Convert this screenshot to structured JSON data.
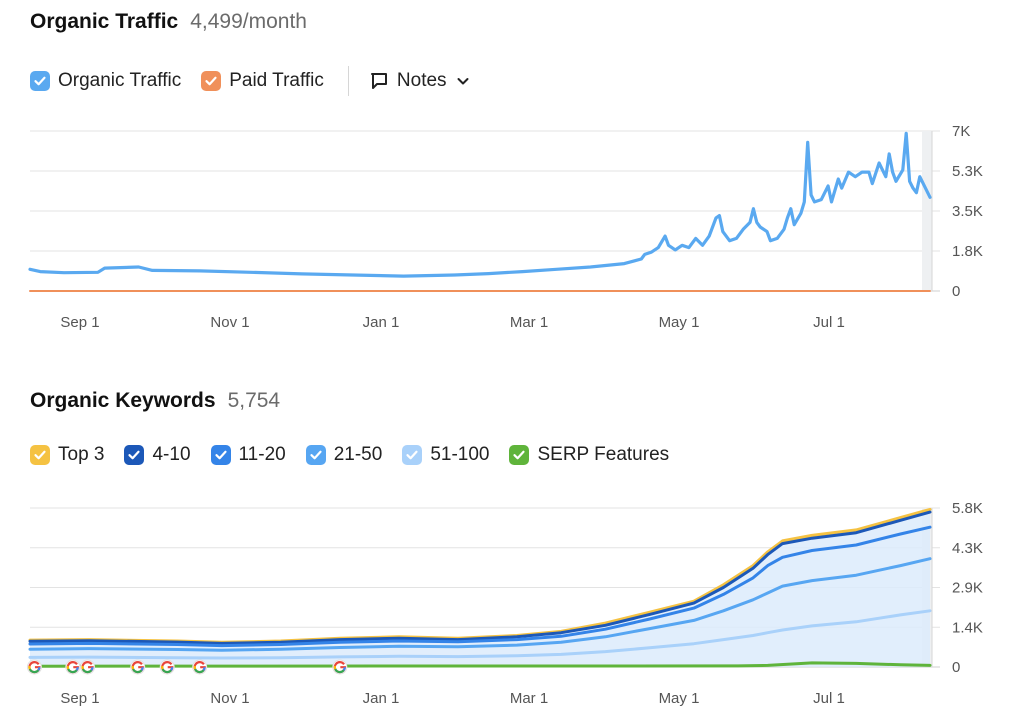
{
  "traffic": {
    "title": "Organic Traffic",
    "value": "4,499/month",
    "legend": [
      {
        "label": "Organic Traffic",
        "color": "#5aa9f0",
        "checked": true
      },
      {
        "label": "Paid Traffic",
        "color": "#f0905a",
        "checked": true
      }
    ],
    "notes_label": "Notes"
  },
  "keywords": {
    "title": "Organic Keywords",
    "value": "5,754",
    "legend": [
      {
        "label": "Top 3",
        "color": "#f5c242",
        "checked": true
      },
      {
        "label": "4-10",
        "color": "#1c58b8",
        "checked": true
      },
      {
        "label": "11-20",
        "color": "#3484e8",
        "checked": true
      },
      {
        "label": "21-50",
        "color": "#57a6f2",
        "checked": true
      },
      {
        "label": "51-100",
        "color": "#a9d1fa",
        "checked": true
      },
      {
        "label": "SERP Features",
        "color": "#5fb43b",
        "checked": true
      }
    ]
  },
  "chart_data": [
    {
      "type": "line",
      "x_start": "Aug 16",
      "x_ticks": [
        "Sep 1",
        "Nov 1",
        "Jan 1",
        "Mar 1",
        "May 1",
        "Jul 1"
      ],
      "y_ticks": [
        "0",
        "1.8K",
        "3.5K",
        "5.3K",
        "7K"
      ],
      "ylim": [
        0,
        7000
      ],
      "grid": true,
      "series": [
        {
          "name": "Organic Traffic",
          "color": "#5aa9f0",
          "values": [
            [
              0,
              950
            ],
            [
              6,
              850
            ],
            [
              20,
              800
            ],
            [
              40,
              820
            ],
            [
              44,
              1000
            ],
            [
              64,
              1050
            ],
            [
              72,
              900
            ],
            [
              100,
              880
            ],
            [
              130,
              820
            ],
            [
              160,
              750
            ],
            [
              190,
              700
            ],
            [
              220,
              650
            ],
            [
              250,
              700
            ],
            [
              270,
              760
            ],
            [
              290,
              850
            ],
            [
              310,
              950
            ],
            [
              330,
              1050
            ],
            [
              350,
              1200
            ],
            [
              360,
              1400
            ],
            [
              362,
              1600
            ],
            [
              366,
              1700
            ],
            [
              370,
              1900
            ],
            [
              374,
              2400
            ],
            [
              376,
              2000
            ],
            [
              380,
              1800
            ],
            [
              384,
              2000
            ],
            [
              388,
              1900
            ],
            [
              392,
              2300
            ],
            [
              396,
              2000
            ],
            [
              400,
              2400
            ],
            [
              404,
              3200
            ],
            [
              406,
              3300
            ],
            [
              408,
              2600
            ],
            [
              412,
              2200
            ],
            [
              416,
              2300
            ],
            [
              420,
              2700
            ],
            [
              424,
              3000
            ],
            [
              426,
              3600
            ],
            [
              428,
              3000
            ],
            [
              430,
              2800
            ],
            [
              434,
              2600
            ],
            [
              436,
              2200
            ],
            [
              440,
              2300
            ],
            [
              444,
              2700
            ],
            [
              446,
              3200
            ],
            [
              448,
              3600
            ],
            [
              450,
              2900
            ],
            [
              454,
              3400
            ],
            [
              456,
              3900
            ],
            [
              458,
              6500
            ],
            [
              460,
              4200
            ],
            [
              462,
              3900
            ],
            [
              466,
              4000
            ],
            [
              470,
              4600
            ],
            [
              472,
              3900
            ],
            [
              476,
              4900
            ],
            [
              478,
              4500
            ],
            [
              482,
              5200
            ],
            [
              486,
              5000
            ],
            [
              490,
              5200
            ],
            [
              494,
              5200
            ],
            [
              496,
              4700
            ],
            [
              500,
              5600
            ],
            [
              504,
              5000
            ],
            [
              506,
              6000
            ],
            [
              508,
              5200
            ],
            [
              510,
              4800
            ],
            [
              514,
              5300
            ],
            [
              516,
              6900
            ],
            [
              518,
              4800
            ],
            [
              520,
              4500
            ],
            [
              522,
              4300
            ],
            [
              524,
              5000
            ],
            [
              528,
              4400
            ],
            [
              530,
              4100
            ]
          ]
        },
        {
          "name": "Paid Traffic",
          "color": "#f0905a",
          "values": [
            [
              0,
              0
            ],
            [
              530,
              0
            ]
          ]
        }
      ]
    },
    {
      "type": "area",
      "x_start": "Aug 16",
      "x_ticks": [
        "Sep 1",
        "Nov 1",
        "Jan 1",
        "Mar 1",
        "May 1",
        "Jul 1"
      ],
      "y_ticks": [
        "0",
        "1.4K",
        "2.9K",
        "4.3K",
        "5.8K"
      ],
      "ylim": [
        0,
        5800
      ],
      "grid": true,
      "series": [
        {
          "name": "Top 3",
          "color": "#f5c242",
          "values": [
            [
              0,
              980
            ],
            [
              40,
              1000
            ],
            [
              100,
              950
            ],
            [
              130,
              900
            ],
            [
              170,
              950
            ],
            [
              210,
              1050
            ],
            [
              250,
              1100
            ],
            [
              290,
              1050
            ],
            [
              330,
              1150
            ],
            [
              360,
              1300
            ],
            [
              390,
              1600
            ],
            [
              420,
              2000
            ],
            [
              450,
              2400
            ],
            [
              470,
              3000
            ],
            [
              490,
              3700
            ],
            [
              500,
              4200
            ],
            [
              510,
              4600
            ],
            [
              530,
              4800
            ],
            [
              560,
              5000
            ],
            [
              590,
              5450
            ],
            [
              610,
              5750
            ]
          ]
        },
        {
          "name": "4-10",
          "color": "#1c58b8",
          "values": [
            [
              0,
              940
            ],
            [
              40,
              960
            ],
            [
              100,
              910
            ],
            [
              130,
              860
            ],
            [
              170,
              900
            ],
            [
              210,
              1000
            ],
            [
              250,
              1050
            ],
            [
              290,
              1000
            ],
            [
              330,
              1100
            ],
            [
              360,
              1250
            ],
            [
              390,
              1520
            ],
            [
              420,
              1920
            ],
            [
              450,
              2330
            ],
            [
              470,
              2900
            ],
            [
              490,
              3600
            ],
            [
              500,
              4100
            ],
            [
              510,
              4500
            ],
            [
              530,
              4700
            ],
            [
              560,
              4900
            ],
            [
              590,
              5350
            ],
            [
              610,
              5650
            ]
          ]
        },
        {
          "name": "11-20",
          "color": "#3484e8",
          "values": [
            [
              0,
              840
            ],
            [
              40,
              860
            ],
            [
              100,
              820
            ],
            [
              130,
              780
            ],
            [
              170,
              820
            ],
            [
              210,
              900
            ],
            [
              250,
              950
            ],
            [
              290,
              920
            ],
            [
              330,
              1000
            ],
            [
              360,
              1120
            ],
            [
              390,
              1380
            ],
            [
              420,
              1750
            ],
            [
              450,
              2150
            ],
            [
              470,
              2650
            ],
            [
              490,
              3250
            ],
            [
              500,
              3700
            ],
            [
              510,
              4000
            ],
            [
              530,
              4250
            ],
            [
              560,
              4450
            ],
            [
              590,
              4850
            ],
            [
              610,
              5100
            ]
          ]
        },
        {
          "name": "21-50",
          "color": "#57a6f2",
          "values": [
            [
              0,
              650
            ],
            [
              40,
              670
            ],
            [
              100,
              640
            ],
            [
              130,
              610
            ],
            [
              170,
              650
            ],
            [
              210,
              710
            ],
            [
              250,
              760
            ],
            [
              290,
              740
            ],
            [
              330,
              800
            ],
            [
              360,
              900
            ],
            [
              390,
              1100
            ],
            [
              420,
              1400
            ],
            [
              450,
              1700
            ],
            [
              470,
              2050
            ],
            [
              490,
              2450
            ],
            [
              500,
              2700
            ],
            [
              510,
              2950
            ],
            [
              530,
              3150
            ],
            [
              560,
              3350
            ],
            [
              590,
              3700
            ],
            [
              610,
              3950
            ]
          ]
        },
        {
          "name": "51-100",
          "color": "#a9d1fa",
          "values": [
            [
              0,
              350
            ],
            [
              40,
              360
            ],
            [
              100,
              340
            ],
            [
              130,
              330
            ],
            [
              170,
              340
            ],
            [
              210,
              370
            ],
            [
              250,
              390
            ],
            [
              290,
              380
            ],
            [
              330,
              410
            ],
            [
              360,
              460
            ],
            [
              390,
              560
            ],
            [
              420,
              700
            ],
            [
              450,
              850
            ],
            [
              470,
              1000
            ],
            [
              490,
              1150
            ],
            [
              500,
              1250
            ],
            [
              510,
              1350
            ],
            [
              530,
              1500
            ],
            [
              560,
              1650
            ],
            [
              590,
              1900
            ],
            [
              610,
              2050
            ]
          ]
        },
        {
          "name": "SERP Features",
          "color": "#5fb43b",
          "values": [
            [
              0,
              30
            ],
            [
              480,
              40
            ],
            [
              500,
              60
            ],
            [
              530,
              150
            ],
            [
              560,
              130
            ],
            [
              590,
              80
            ],
            [
              610,
              60
            ]
          ]
        }
      ],
      "google_markers": [
        3,
        29,
        39,
        73,
        93,
        115,
        210
      ]
    }
  ]
}
